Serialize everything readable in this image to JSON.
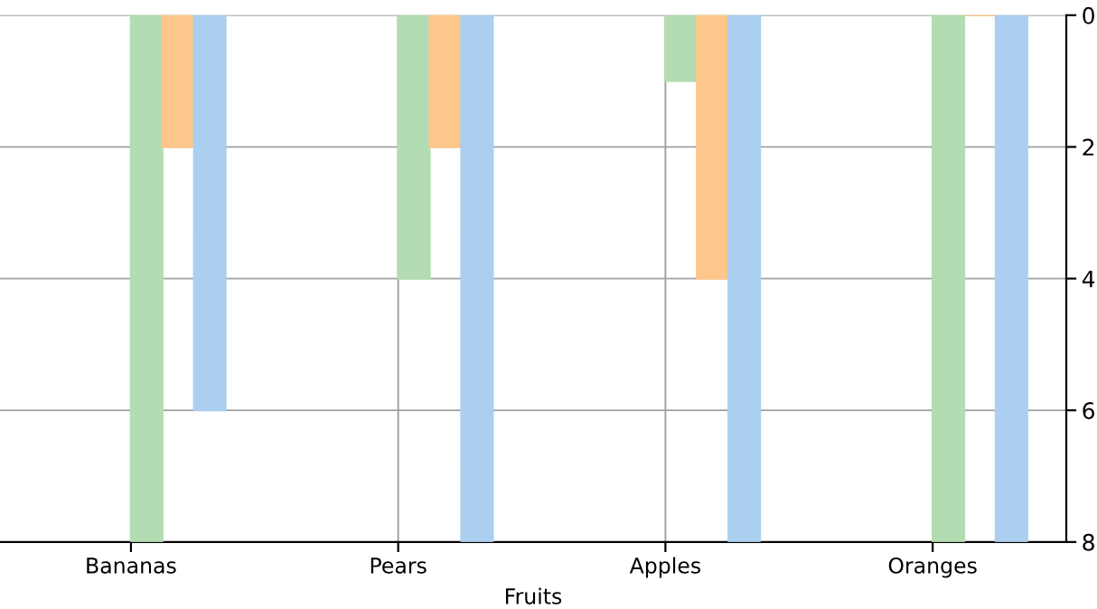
{
  "chart_data": {
    "type": "bar",
    "xlabel": "Fruits",
    "categories": [
      "Bananas",
      "Pears",
      "Apples",
      "Oranges"
    ],
    "series": [
      {
        "color": "#b3dcb3",
        "values": [
          8,
          4,
          1,
          8
        ]
      },
      {
        "color": "#fdc68a",
        "values": [
          2,
          2,
          4,
          0
        ]
      },
      {
        "color": "#abcfee",
        "values": [
          6,
          8,
          8,
          8
        ]
      }
    ],
    "ylim": [
      8,
      0
    ],
    "yticks": [
      0,
      2,
      4,
      6,
      8
    ],
    "grid": true,
    "legend": false
  }
}
